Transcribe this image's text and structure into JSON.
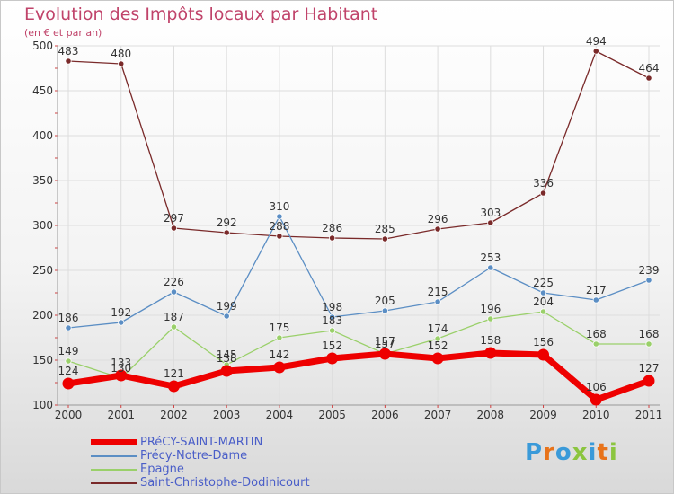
{
  "title": "Evolution des Impôts locaux par Habitant",
  "subtitle": "(en € et par an)",
  "logo_text": "Proxiti",
  "logo_colors": [
    "#3a9ad9",
    "#e8731a",
    "#3a9ad9",
    "#8bc53f",
    "#3a9ad9",
    "#e8731a",
    "#8bc53f"
  ],
  "chart_data": {
    "type": "line",
    "x": [
      "2000",
      "2001",
      "2002",
      "2003",
      "2004",
      "2005",
      "2006",
      "2007",
      "2008",
      "2009",
      "2010",
      "2011"
    ],
    "ylim": [
      100,
      500
    ],
    "yticks": [
      "100",
      "150",
      "200",
      "250",
      "300",
      "350",
      "400",
      "450",
      "500"
    ],
    "grid": true,
    "legend_position": "bottom-left",
    "series": [
      {
        "name": "Saint-Christophe-Dodinicourt",
        "color": "#7a2a2a",
        "values": [
          483,
          480,
          297,
          292,
          288,
          286,
          285,
          296,
          303,
          336,
          494,
          464
        ],
        "labels": [
          "483",
          "480",
          "297",
          "292",
          "288",
          "286",
          "285",
          "296",
          "303",
          "336",
          "494",
          "464"
        ]
      },
      {
        "name": "Précy-Notre-Dame",
        "color": "#5b8ec4",
        "values": [
          186,
          192,
          226,
          199,
          310,
          198,
          205,
          215,
          253,
          225,
          217,
          239
        ],
        "labels": [
          "186",
          "192",
          "226",
          "199",
          "310",
          "198",
          "205",
          "215",
          "253",
          "225",
          "217",
          "239"
        ]
      },
      {
        "name": "Epagne",
        "color": "#9ad06a",
        "values": [
          149,
          130,
          187,
          145,
          175,
          183,
          157,
          174,
          196,
          204,
          168,
          168
        ],
        "labels": [
          "149",
          "130",
          "187",
          "145",
          "175",
          "183",
          "157",
          "174",
          "196",
          "204",
          "168",
          "168"
        ]
      },
      {
        "name": "PRéCY-SAINT-MARTIN",
        "color": "#ee0000",
        "values": [
          124,
          133,
          121,
          138,
          142,
          152,
          157,
          152,
          158,
          156,
          106,
          127
        ],
        "labels": [
          "124",
          "133",
          "121",
          "138",
          "142",
          "152",
          "157",
          "152",
          "158",
          "156",
          "106",
          "127"
        ]
      }
    ],
    "legend": [
      "PRéCY-SAINT-MARTIN",
      "Précy-Notre-Dame",
      "Epagne",
      "Saint-Christophe-Dodinicourt"
    ]
  }
}
